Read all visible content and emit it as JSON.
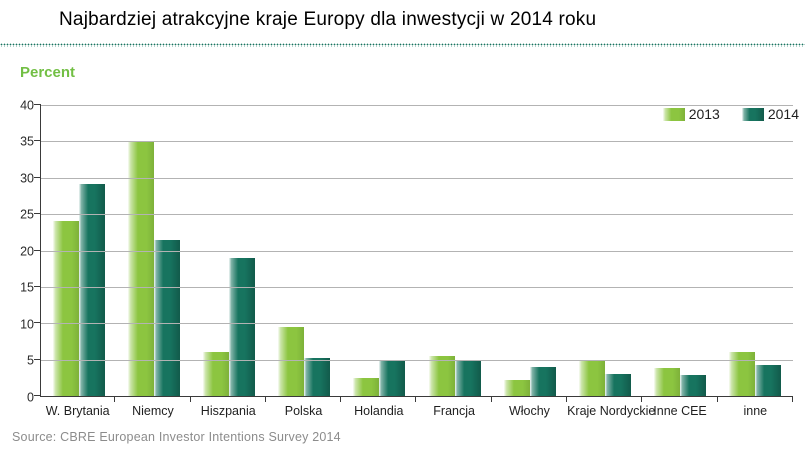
{
  "header": {
    "title": "Najbardziej atrakcyjne kraje Europy dla inwestycji w 2014 roku"
  },
  "chart_data": {
    "type": "bar",
    "title": "Najbardziej atrakcyjne kraje Europy dla inwestycji w 2014 roku",
    "ylabel": "Percent",
    "xlabel": "",
    "ylim": [
      0,
      40
    ],
    "ytick_step": 5,
    "grid": true,
    "legend_position": "top-right",
    "categories": [
      "W. Brytania",
      "Niemcy",
      "Hiszpania",
      "Polska",
      "Holandia",
      "Francja",
      "Włochy",
      "Kraje Nordyckie",
      "Inne CEE",
      "inne"
    ],
    "series": [
      {
        "name": "2013",
        "values": [
          24,
          35,
          6,
          9.5,
          2.5,
          5.5,
          2.2,
          5,
          3.8,
          6
        ]
      },
      {
        "name": "2014",
        "values": [
          29.2,
          21.5,
          19,
          5.2,
          5,
          5,
          4,
          3,
          2.9,
          4.2
        ]
      }
    ]
  },
  "footer": {
    "source": "Source: CBRE European Investor Intentions Survey 2014"
  },
  "colors": {
    "series_2013_green": "#8CC540",
    "series_2014_teal": "#17745F",
    "accent_green": "#72BF44",
    "separator_green": "#17735F",
    "gridline_gray": "#B3B3B3",
    "axis_gray": "#3A3A3A",
    "source_gray": "#8C8C8C"
  }
}
